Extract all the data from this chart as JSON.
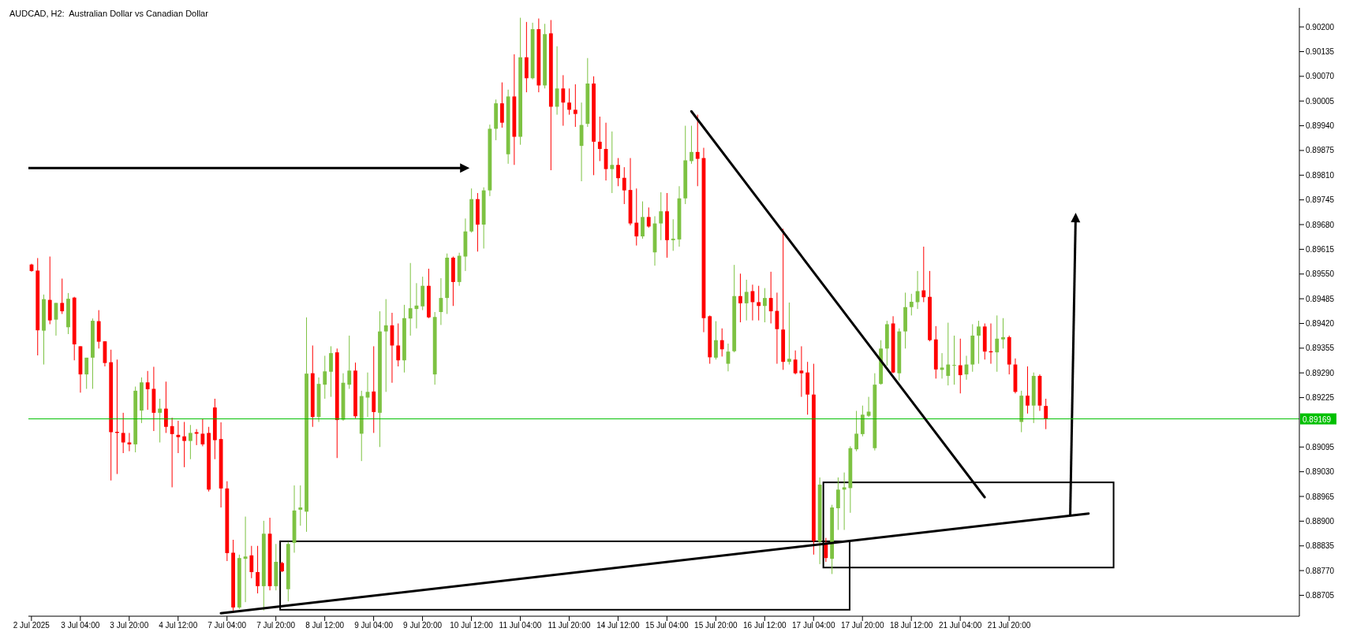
{
  "chart_data": {
    "type": "candlestick",
    "title": "AUDCAD, H2:  Australian Dollar vs Canadian Dollar",
    "categories": [
      "2 Jul 2025",
      null,
      null,
      null,
      null,
      null,
      null,
      null,
      "3 Jul 04:00",
      null,
      null,
      null,
      null,
      null,
      null,
      null,
      "3 Jul 20:00",
      null,
      null,
      null,
      null,
      null,
      null,
      null,
      "4 Jul 12:00",
      null,
      null,
      null,
      null,
      null,
      null,
      null,
      "7 Jul 04:00",
      null,
      null,
      null,
      null,
      null,
      null,
      null,
      "7 Jul 20:00",
      null,
      null,
      null,
      null,
      null,
      null,
      null,
      "8 Jul 12:00",
      null,
      null,
      null,
      null,
      null,
      null,
      null,
      "9 Jul 04:00",
      null,
      null,
      null,
      null,
      null,
      null,
      null,
      "9 Jul 20:00",
      null,
      null,
      null,
      null,
      null,
      null,
      null,
      "10 Jul 12:00",
      null,
      null,
      null,
      null,
      null,
      null,
      null,
      "11 Jul 04:00",
      null,
      null,
      null,
      null,
      null,
      null,
      null,
      "11 Jul 20:00",
      null,
      null,
      null,
      null,
      null,
      null,
      null,
      "14 Jul 12:00",
      null,
      null,
      null,
      null,
      null,
      null,
      null,
      "15 Jul 04:00",
      null,
      null,
      null,
      null,
      null,
      null,
      null,
      "15 Jul 20:00",
      null,
      null,
      null,
      null,
      null,
      null,
      null,
      "16 Jul 12:00",
      null,
      null,
      null,
      null,
      null,
      null,
      null,
      "17 Jul 04:00",
      null,
      null,
      null,
      null,
      null,
      null,
      null,
      "17 Jul 20:00",
      null,
      null,
      null,
      null,
      null,
      null,
      null,
      "18 Jul 12:00",
      null,
      null,
      null,
      null,
      null,
      null,
      null,
      "21 Jul 04:00",
      null,
      null,
      null,
      null,
      null,
      null,
      null,
      "21 Jul 20:00",
      null,
      null,
      null,
      null,
      null,
      null,
      null,
      null,
      null,
      null,
      null,
      null,
      null,
      null,
      null,
      null,
      null,
      null,
      null,
      null,
      null,
      null,
      null,
      null,
      null,
      null,
      null,
      null,
      null,
      null,
      null,
      null,
      null,
      null,
      null,
      null,
      null,
      null,
      null,
      null,
      null,
      null,
      null,
      null,
      null,
      null,
      null
    ],
    "ohlc": [
      [
        0.89575,
        0.89577,
        0.89556,
        0.89558
      ],
      [
        0.89559,
        0.89592,
        0.89336,
        0.89402
      ],
      [
        0.89401,
        0.89496,
        0.89312,
        0.89484
      ],
      [
        0.89482,
        0.89596,
        0.89418,
        0.89428
      ],
      [
        0.8943,
        0.89474,
        0.89388,
        0.89474
      ],
      [
        0.89474,
        0.89538,
        0.89445,
        0.89452
      ],
      [
        0.8941,
        0.895,
        0.89392,
        0.89485
      ],
      [
        0.89488,
        0.8949,
        0.89323,
        0.89365
      ],
      [
        0.8936,
        0.8936,
        0.89238,
        0.89286
      ],
      [
        0.89286,
        0.8933,
        0.89248,
        0.8933
      ],
      [
        0.8933,
        0.89433,
        0.89248,
        0.89427
      ],
      [
        0.89426,
        0.89455,
        0.89354,
        0.89372
      ],
      [
        0.89373,
        0.89373,
        0.89307,
        0.89316
      ],
      [
        0.89318,
        0.89351,
        0.89007,
        0.89134
      ],
      [
        0.89135,
        0.89325,
        0.89024,
        0.89132
      ],
      [
        0.89132,
        0.89185,
        0.89079,
        0.89107
      ],
      [
        0.89107,
        0.89132,
        0.89084,
        0.89102
      ],
      [
        0.89102,
        0.89254,
        0.89081,
        0.89243
      ],
      [
        0.89191,
        0.89278,
        0.89158,
        0.89265
      ],
      [
        0.89265,
        0.89295,
        0.89193,
        0.89247
      ],
      [
        0.89248,
        0.89306,
        0.89137,
        0.89185
      ],
      [
        0.89185,
        0.89222,
        0.89107,
        0.89196
      ],
      [
        0.89196,
        0.89267,
        0.89132,
        0.89148
      ],
      [
        0.8915,
        0.89172,
        0.88989,
        0.89129
      ],
      [
        0.89127,
        0.89164,
        0.89079,
        0.89121
      ],
      [
        0.89123,
        0.89161,
        0.89042,
        0.89111
      ],
      [
        0.89111,
        0.89153,
        0.89063,
        0.89132
      ],
      [
        0.89134,
        0.89142,
        0.891,
        0.8913
      ],
      [
        0.8913,
        0.89169,
        0.89097,
        0.89102
      ],
      [
        0.89132,
        0.89148,
        0.88978,
        0.88983
      ],
      [
        0.89199,
        0.89222,
        0.89063,
        0.89113
      ],
      [
        0.89116,
        0.8916,
        0.88936,
        0.88986
      ],
      [
        0.88986,
        0.89005,
        0.88795,
        0.88816
      ],
      [
        0.88817,
        0.88851,
        0.88665,
        0.88673
      ],
      [
        0.88673,
        0.88812,
        0.88669,
        0.88803
      ],
      [
        0.88801,
        0.88912,
        0.88687,
        0.88807
      ],
      [
        0.8881,
        0.88835,
        0.8875,
        0.88766
      ],
      [
        0.88766,
        0.88835,
        0.8871,
        0.88729
      ],
      [
        0.88729,
        0.88901,
        0.88665,
        0.88867
      ],
      [
        0.88867,
        0.88909,
        0.88718,
        0.88729
      ],
      [
        0.88729,
        0.8884,
        0.88718,
        0.88793
      ],
      [
        0.8879,
        0.88793,
        0.88766,
        0.88768
      ],
      [
        0.88721,
        0.88846,
        0.88689,
        0.8884
      ],
      [
        0.88843,
        0.88994,
        0.88817,
        0.88928
      ],
      [
        0.8893,
        0.88994,
        0.88888,
        0.88936
      ],
      [
        0.88925,
        0.89436,
        0.88872,
        0.89288
      ],
      [
        0.89289,
        0.89362,
        0.89148,
        0.89174
      ],
      [
        0.89174,
        0.89278,
        0.89161,
        0.89261
      ],
      [
        0.89259,
        0.89335,
        0.89222,
        0.89294
      ],
      [
        0.89293,
        0.8936,
        0.89227,
        0.89342
      ],
      [
        0.89344,
        0.89354,
        0.89066,
        0.89166
      ],
      [
        0.89167,
        0.89289,
        0.89164,
        0.89264
      ],
      [
        0.89259,
        0.89388,
        0.89248,
        0.89296
      ],
      [
        0.89296,
        0.89317,
        0.89171,
        0.89176
      ],
      [
        0.8913,
        0.89243,
        0.89058,
        0.89229
      ],
      [
        0.89225,
        0.89291,
        0.89174,
        0.8924
      ],
      [
        0.89241,
        0.8936,
        0.89132,
        0.89187
      ],
      [
        0.89185,
        0.89452,
        0.89095,
        0.89399
      ],
      [
        0.89399,
        0.89484,
        0.8924,
        0.89415
      ],
      [
        0.89415,
        0.89448,
        0.89264,
        0.89362
      ],
      [
        0.89362,
        0.8942,
        0.89307,
        0.89323
      ],
      [
        0.89323,
        0.89469,
        0.89291,
        0.89434
      ],
      [
        0.89433,
        0.89579,
        0.89388,
        0.8946
      ],
      [
        0.89458,
        0.89526,
        0.89407,
        0.89467
      ],
      [
        0.89465,
        0.89543,
        0.89455,
        0.89519
      ],
      [
        0.89519,
        0.89564,
        0.89434,
        0.89436
      ],
      [
        0.89286,
        0.8945,
        0.89259,
        0.89437
      ],
      [
        0.8945,
        0.89539,
        0.89416,
        0.89487
      ],
      [
        0.89487,
        0.89604,
        0.89445,
        0.89593
      ],
      [
        0.89593,
        0.89596,
        0.89466,
        0.89529
      ],
      [
        0.89529,
        0.89606,
        0.89519,
        0.89598
      ],
      [
        0.89596,
        0.89696,
        0.89558,
        0.89662
      ],
      [
        0.89662,
        0.89775,
        0.89659,
        0.89747
      ],
      [
        0.89747,
        0.89763,
        0.89609,
        0.8968
      ],
      [
        0.8968,
        0.89778,
        0.89617,
        0.8977
      ],
      [
        0.8977,
        0.89943,
        0.89755,
        0.89932
      ],
      [
        0.89932,
        0.90009,
        0.89902,
        0.89999
      ],
      [
        0.89999,
        0.90054,
        0.89935,
        0.89948
      ],
      [
        0.89865,
        0.90035,
        0.8984,
        0.90017
      ],
      [
        0.90017,
        0.90128,
        0.89837,
        0.89911
      ],
      [
        0.89911,
        0.90224,
        0.8989,
        0.9012
      ],
      [
        0.9012,
        0.90213,
        0.90028,
        0.90065
      ],
      [
        0.90065,
        0.90211,
        0.90062,
        0.90194
      ],
      [
        0.90194,
        0.90222,
        0.90028,
        0.90046
      ],
      [
        0.90046,
        0.90208,
        0.90038,
        0.90181
      ],
      [
        0.90183,
        0.90218,
        0.89823,
        0.8999
      ],
      [
        0.8999,
        0.90149,
        0.89969,
        0.90038
      ],
      [
        0.90038,
        0.90073,
        0.8994,
        0.90001
      ],
      [
        0.90001,
        0.90038,
        0.89969,
        0.89982
      ],
      [
        0.89982,
        0.90049,
        0.89937,
        0.89971
      ],
      [
        0.89887,
        0.90001,
        0.89794,
        0.89942
      ],
      [
        0.89945,
        0.90118,
        0.89937,
        0.90051
      ],
      [
        0.90051,
        0.9007,
        0.8981,
        0.89898
      ],
      [
        0.89898,
        0.89964,
        0.89847,
        0.89879
      ],
      [
        0.89879,
        0.89948,
        0.89796,
        0.89826
      ],
      [
        0.89826,
        0.89925,
        0.89763,
        0.89837
      ],
      [
        0.89837,
        0.89855,
        0.89781,
        0.89802
      ],
      [
        0.89803,
        0.89831,
        0.89734,
        0.8977
      ],
      [
        0.89771,
        0.89855,
        0.89678,
        0.89683
      ],
      [
        0.89685,
        0.89775,
        0.89625,
        0.89649
      ],
      [
        0.89649,
        0.89741,
        0.89643,
        0.897
      ],
      [
        0.897,
        0.89725,
        0.89672,
        0.89675
      ],
      [
        0.89607,
        0.89702,
        0.89572,
        0.89683
      ],
      [
        0.89683,
        0.89765,
        0.89639,
        0.89715
      ],
      [
        0.89715,
        0.89763,
        0.89593,
        0.89639
      ],
      [
        0.89639,
        0.89694,
        0.89611,
        0.89643
      ],
      [
        0.89641,
        0.89781,
        0.89622,
        0.89749
      ],
      [
        0.89749,
        0.8994,
        0.89734,
        0.89849
      ],
      [
        0.89847,
        0.8994,
        0.8984,
        0.89871
      ],
      [
        0.89871,
        0.89969,
        0.89781,
        0.89853
      ],
      [
        0.89855,
        0.89882,
        0.89397,
        0.89434
      ],
      [
        0.89439,
        0.89441,
        0.89314,
        0.89331
      ],
      [
        0.8933,
        0.89426,
        0.89325,
        0.89376
      ],
      [
        0.89376,
        0.89407,
        0.89333,
        0.89352
      ],
      [
        0.89314,
        0.89367,
        0.89294,
        0.89346
      ],
      [
        0.89347,
        0.89574,
        0.89344,
        0.89492
      ],
      [
        0.89492,
        0.89551,
        0.89423,
        0.89473
      ],
      [
        0.89473,
        0.89535,
        0.89428,
        0.89503
      ],
      [
        0.89505,
        0.89522,
        0.89428,
        0.89476
      ],
      [
        0.89476,
        0.89519,
        0.89428,
        0.89466
      ],
      [
        0.89466,
        0.89513,
        0.89423,
        0.89487
      ],
      [
        0.89487,
        0.89556,
        0.8942,
        0.89452
      ],
      [
        0.89453,
        0.89501,
        0.89314,
        0.89405
      ],
      [
        0.89404,
        0.89669,
        0.89298,
        0.89319
      ],
      [
        0.89319,
        0.89475,
        0.89312,
        0.89327
      ],
      [
        0.89325,
        0.89349,
        0.89286,
        0.89289
      ],
      [
        0.89296,
        0.8936,
        0.89227,
        0.89289
      ],
      [
        0.89291,
        0.89319,
        0.8918,
        0.89233
      ],
      [
        0.89233,
        0.89314,
        0.88812,
        0.88848
      ],
      [
        0.88846,
        0.89015,
        0.88787,
        0.88996
      ],
      [
        0.8884,
        0.88856,
        0.88793,
        0.88803
      ],
      [
        0.88801,
        0.88943,
        0.88761,
        0.88936
      ],
      [
        0.88934,
        0.89015,
        0.88877,
        0.88983
      ],
      [
        0.88983,
        0.89028,
        0.88877,
        0.88989
      ],
      [
        0.88987,
        0.89097,
        0.88922,
        0.89092
      ],
      [
        0.89089,
        0.8919,
        0.89084,
        0.8913
      ],
      [
        0.89129,
        0.89204,
        0.89123,
        0.8918
      ],
      [
        0.89177,
        0.89227,
        0.89174,
        0.89188
      ],
      [
        0.89092,
        0.89289,
        0.89086,
        0.89259
      ],
      [
        0.89261,
        0.89376,
        0.89259,
        0.89354
      ],
      [
        0.89354,
        0.89427,
        0.89309,
        0.89418
      ],
      [
        0.8942,
        0.89439,
        0.89289,
        0.89291
      ],
      [
        0.89289,
        0.89407,
        0.8927,
        0.89399
      ],
      [
        0.89399,
        0.89501,
        0.89354,
        0.89463
      ],
      [
        0.89463,
        0.89498,
        0.89441,
        0.89477
      ],
      [
        0.89476,
        0.89558,
        0.89458,
        0.89505
      ],
      [
        0.89507,
        0.89622,
        0.89476,
        0.89489
      ],
      [
        0.8949,
        0.89558,
        0.89373,
        0.89376
      ],
      [
        0.89378,
        0.89413,
        0.89275,
        0.89299
      ],
      [
        0.89298,
        0.89342,
        0.89275,
        0.89304
      ],
      [
        0.89282,
        0.89422,
        0.89257,
        0.89312
      ],
      [
        0.8931,
        0.89388,
        0.89259,
        0.89311
      ],
      [
        0.8931,
        0.8938,
        0.89236,
        0.89284
      ],
      [
        0.89286,
        0.89335,
        0.89272,
        0.89312
      ],
      [
        0.89312,
        0.89418,
        0.89293,
        0.89388
      ],
      [
        0.89388,
        0.89427,
        0.89314,
        0.89412
      ],
      [
        0.89412,
        0.8942,
        0.89325,
        0.89346
      ],
      [
        0.89347,
        0.8942,
        0.89314,
        0.89344
      ],
      [
        0.89344,
        0.89441,
        0.89293,
        0.8938
      ],
      [
        0.89378,
        0.89434,
        0.89354,
        0.89384
      ],
      [
        0.89384,
        0.89388,
        0.89286,
        0.89312
      ],
      [
        0.89312,
        0.89328,
        0.89236,
        0.8924
      ],
      [
        0.89161,
        0.89243,
        0.89134,
        0.8923
      ],
      [
        0.8923,
        0.89307,
        0.89183,
        0.89204
      ],
      [
        0.89204,
        0.89291,
        0.89158,
        0.89282
      ],
      [
        0.89282,
        0.89286,
        0.8919,
        0.89204
      ],
      [
        0.89203,
        0.89222,
        0.89142,
        0.89169
      ],
      null,
      null,
      null,
      null,
      null,
      null,
      null,
      null,
      null,
      null,
      null,
      null,
      null,
      null,
      null,
      null,
      null,
      null,
      null,
      null,
      null,
      null,
      null,
      null,
      null,
      null,
      null,
      null,
      null,
      null,
      null,
      null,
      null,
      null,
      null,
      null,
      null,
      null,
      null,
      null,
      null
    ],
    "colors": [
      "#ff0000",
      "#ff0000",
      "#7dc242",
      "#ff0000",
      "#7dc242",
      "#ff0000",
      "#7dc242",
      "#ff0000",
      "#ff0000",
      "#7dc242",
      "#7dc242",
      "#ff0000",
      "#ff0000",
      "#ff0000",
      "#ff0000",
      "#ff0000",
      "#ff0000",
      "#7dc242",
      "#7dc242",
      "#ff0000",
      "#ff0000",
      "#7dc242",
      "#ff0000",
      "#ff0000",
      "#ff0000",
      "#ff0000",
      "#7dc242",
      "#ff0000",
      "#ff0000",
      "#ff0000",
      "#ff0000",
      "#ff0000",
      "#ff0000",
      "#ff0000",
      "#7dc242",
      "#7dc242",
      "#ff0000",
      "#ff0000",
      "#7dc242",
      "#ff0000",
      "#7dc242",
      "#ff0000",
      "#7dc242",
      "#7dc242",
      "#7dc242",
      "#7dc242",
      "#ff0000",
      "#7dc242",
      "#7dc242",
      "#7dc242",
      "#ff0000",
      "#7dc242",
      "#7dc242",
      "#ff0000",
      "#7dc242",
      "#7dc242",
      "#ff0000",
      "#7dc242",
      "#7dc242",
      "#ff0000",
      "#ff0000",
      "#7dc242",
      "#7dc242",
      "#7dc242",
      "#7dc242",
      "#ff0000",
      "#7dc242",
      "#7dc242",
      "#7dc242",
      "#ff0000",
      "#7dc242",
      "#7dc242",
      "#7dc242",
      "#ff0000",
      "#7dc242",
      "#7dc242",
      "#7dc242",
      "#ff0000",
      "#7dc242",
      "#ff0000",
      "#7dc242",
      "#ff0000",
      "#7dc242",
      "#ff0000",
      "#7dc242",
      "#ff0000",
      "#7dc242",
      "#ff0000",
      "#ff0000",
      "#ff0000",
      "#7dc242",
      "#7dc242",
      "#ff0000",
      "#ff0000",
      "#ff0000",
      "#7dc242",
      "#ff0000",
      "#ff0000",
      "#ff0000",
      "#ff0000",
      "#7dc242",
      "#ff0000",
      "#7dc242",
      "#7dc242",
      "#ff0000",
      "#7dc242",
      "#7dc242",
      "#7dc242",
      "#7dc242",
      "#ff0000",
      "#ff0000",
      "#ff0000",
      "#7dc242",
      "#ff0000",
      "#7dc242",
      "#7dc242",
      "#ff0000",
      "#7dc242",
      "#ff0000",
      "#ff0000",
      "#7dc242",
      "#ff0000",
      "#ff0000",
      "#ff0000",
      "#7dc242",
      "#ff0000",
      "#ff0000",
      "#ff0000",
      "#ff0000",
      "#7dc242",
      "#ff0000",
      "#7dc242",
      "#7dc242",
      "#7dc242",
      "#7dc242",
      "#7dc242",
      "#7dc242",
      "#7dc242",
      "#7dc242",
      "#7dc242",
      "#7dc242",
      "#ff0000",
      "#7dc242",
      "#7dc242",
      "#7dc242",
      "#7dc242",
      "#ff0000",
      "#ff0000",
      "#ff0000",
      "#7dc242",
      "#7dc242",
      "#7dc242",
      "#ff0000",
      "#7dc242",
      "#7dc242",
      "#7dc242",
      "#ff0000",
      "#ff0000",
      "#7dc242",
      "#7dc242",
      "#ff0000",
      "#ff0000",
      "#7dc242",
      "#ff0000",
      "#7dc242",
      "#ff0000",
      "#ff0000",
      null,
      null,
      null,
      null,
      null,
      null,
      null,
      null,
      null,
      null,
      null,
      null,
      null,
      null,
      null,
      null,
      null,
      null,
      null,
      null,
      null,
      null,
      null,
      null,
      null,
      null,
      null,
      null,
      null,
      null,
      null,
      null,
      null,
      null,
      null,
      null,
      null,
      null,
      null,
      null,
      null
    ],
    "series": [
      {
        "type": "line",
        "color": "#000000",
        "values": [
          null,
          null,
          null,
          null,
          null,
          null,
          null,
          null,
          null,
          null,
          null,
          null,
          null,
          null,
          null,
          null,
          null,
          null,
          null,
          null,
          null,
          null,
          null,
          null,
          null,
          null,
          null,
          null,
          null,
          null,
          null,
          0.88658,
          null,
          null,
          null,
          null,
          null,
          null,
          null,
          null,
          null,
          null,
          null,
          null,
          null,
          null,
          null,
          null,
          null,
          null,
          null,
          null,
          null,
          null,
          null,
          null,
          null,
          null,
          null,
          null,
          null,
          null,
          null,
          null,
          null,
          null,
          null,
          null,
          null,
          null,
          null,
          null,
          null,
          null,
          null,
          null,
          null,
          null,
          null,
          null,
          null,
          null,
          null,
          null,
          null,
          null,
          null,
          null,
          null,
          null,
          null,
          null,
          null,
          null,
          null,
          null,
          null,
          null,
          null,
          null,
          null,
          null,
          null,
          null,
          null,
          null,
          null,
          null,
          null,
          null,
          null,
          null,
          null,
          null,
          null,
          null,
          null,
          null,
          null,
          null,
          null,
          null,
          null,
          null,
          null,
          null,
          null,
          null,
          null,
          null,
          null,
          null,
          null,
          null,
          null,
          null,
          null,
          null,
          null,
          null,
          null,
          null,
          null,
          null,
          null,
          null,
          null,
          null,
          null,
          null,
          null,
          null,
          null,
          null,
          null,
          null,
          null,
          null,
          null,
          null,
          null,
          null,
          null,
          null,
          null,
          null,
          null,
          null,
          null,
          null,
          null,
          null,
          null,
          0.8892,
          null,
          null,
          null,
          null,
          null,
          null,
          null,
          null,
          null,
          null,
          null,
          null,
          null,
          null,
          null,
          null,
          null,
          null,
          null,
          null,
          null,
          null,
          null,
          null,
          null,
          null,
          null,
          null,
          null,
          null,
          null,
          null,
          null,
          null
        ]
      },
      {
        "type": "line",
        "color": "#000000",
        "values": [
          null,
          null,
          null,
          null,
          null,
          null,
          null,
          null,
          null,
          null,
          null,
          null,
          null,
          null,
          null,
          null,
          null,
          null,
          null,
          null,
          null,
          null,
          null,
          null,
          null,
          null,
          null,
          null,
          null,
          null,
          null,
          null,
          null,
          null,
          null,
          null,
          null,
          null,
          null,
          null,
          null,
          null,
          null,
          null,
          null,
          null,
          null,
          null,
          null,
          null,
          null,
          null,
          null,
          null,
          null,
          null,
          null,
          null,
          null,
          null,
          null,
          null,
          null,
          null,
          null,
          null,
          null,
          null,
          null,
          null,
          null,
          null,
          null,
          null,
          null,
          null,
          null,
          null,
          null,
          null,
          null,
          null,
          null,
          null,
          null,
          null,
          null,
          null,
          null,
          null,
          null,
          null,
          null,
          null,
          null,
          null,
          null,
          null,
          null,
          null,
          null,
          null,
          null,
          null,
          null,
          null,
          null,
          null,
          0.89978,
          null,
          null,
          null,
          null,
          null,
          null,
          null,
          null,
          null,
          null,
          null,
          null,
          null,
          null,
          null,
          null,
          null,
          null,
          null,
          null,
          null,
          null,
          null,
          null,
          null,
          null,
          null,
          null,
          null,
          null,
          null,
          null,
          null,
          null,
          null,
          null,
          null,
          null,
          null,
          null,
          null,
          null,
          null,
          null,
          null,
          null,
          null,
          0.88963,
          null,
          null,
          null,
          null,
          null,
          null,
          null,
          null,
          null,
          null,
          null,
          null,
          null,
          null,
          null,
          null,
          null,
          null,
          null,
          null,
          null,
          null,
          null,
          null,
          null,
          null,
          null,
          null,
          null,
          null,
          null,
          null,
          null,
          null,
          null,
          null,
          null,
          null,
          null,
          null,
          null,
          null,
          null,
          null,
          null,
          null,
          null,
          null,
          null,
          null,
          null
        ]
      }
    ],
    "ylim": [
      0.8865,
      0.9025
    ],
    "yticks": [
      {
        "value": 0.88705,
        "label": "0.88705"
      },
      {
        "value": 0.8877,
        "label": "0.88770"
      },
      {
        "value": 0.88835,
        "label": "0.88835"
      },
      {
        "value": 0.889,
        "label": "0.88900"
      },
      {
        "value": 0.88965,
        "label": "0.88965"
      },
      {
        "value": 0.8903,
        "label": "0.89030"
      },
      {
        "value": 0.89095,
        "label": "0.89095"
      },
      {
        "value": 0.89225,
        "label": "0.89225"
      },
      {
        "value": 0.8929,
        "label": "0.89290"
      },
      {
        "value": 0.89355,
        "label": "0.89355"
      },
      {
        "value": 0.8942,
        "label": "0.89420"
      },
      {
        "value": 0.89485,
        "label": "0.89485"
      },
      {
        "value": 0.8955,
        "label": "0.89550"
      },
      {
        "value": 0.89615,
        "label": "0.89615"
      },
      {
        "value": 0.8968,
        "label": "0.89680"
      },
      {
        "value": 0.89745,
        "label": "0.89745"
      },
      {
        "value": 0.8981,
        "label": "0.89810"
      },
      {
        "value": 0.89875,
        "label": "0.89875"
      },
      {
        "value": 0.8994,
        "label": "0.89940"
      },
      {
        "value": 0.90005,
        "label": "0.90005"
      },
      {
        "value": 0.9007,
        "label": "0.90070"
      },
      {
        "value": 0.90135,
        "label": "0.90135"
      },
      {
        "value": 0.902,
        "label": "0.90200"
      }
    ],
    "ref_lines": [
      {
        "axis": "y",
        "value": 0.89169,
        "label": "0.89169",
        "color": "#00c000"
      }
    ]
  }
}
